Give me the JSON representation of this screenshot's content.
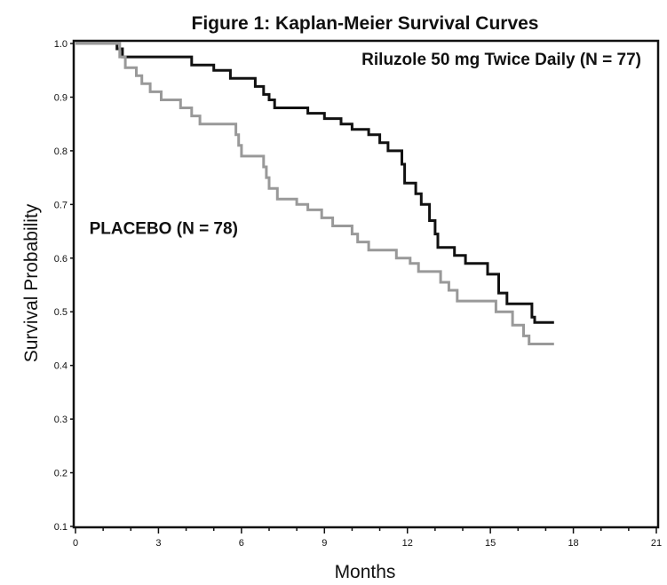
{
  "chart_data": {
    "type": "line",
    "step": true,
    "title": "Figure 1:  Kaplan-Meier Survival Curves",
    "xlabel": "Months",
    "ylabel": "Survival Probability",
    "xlim": [
      0,
      21
    ],
    "ylim": [
      0.1,
      1.0
    ],
    "x_ticks": [
      0,
      3,
      6,
      9,
      12,
      15,
      18,
      21
    ],
    "x_tick_labels": [
      "0",
      "3",
      "6",
      "9",
      "12",
      "15",
      "18",
      "21"
    ],
    "y_ticks": [
      0.1,
      0.2,
      0.3,
      0.4,
      0.5,
      0.6,
      0.7,
      0.8,
      0.9,
      1.0
    ],
    "y_tick_labels": [
      "0.1",
      "0.2",
      "0.3",
      "0.4",
      "0.5",
      "0.6",
      "0.7",
      "0.8",
      "0.9",
      "1.0"
    ],
    "grid": false,
    "series": [
      {
        "name": "Riluzole 50 mg Twice Daily (N = 77)",
        "color": "#111111",
        "points": [
          [
            0,
            1.0
          ],
          [
            1.5,
            0.99
          ],
          [
            1.7,
            0.975
          ],
          [
            4.2,
            0.96
          ],
          [
            5.0,
            0.95
          ],
          [
            5.6,
            0.935
          ],
          [
            6.5,
            0.92
          ],
          [
            6.8,
            0.905
          ],
          [
            7.0,
            0.895
          ],
          [
            7.2,
            0.88
          ],
          [
            8.4,
            0.87
          ],
          [
            9.0,
            0.86
          ],
          [
            9.6,
            0.85
          ],
          [
            10.0,
            0.84
          ],
          [
            10.6,
            0.83
          ],
          [
            11.0,
            0.815
          ],
          [
            11.3,
            0.8
          ],
          [
            11.8,
            0.775
          ],
          [
            11.9,
            0.74
          ],
          [
            12.3,
            0.72
          ],
          [
            12.5,
            0.7
          ],
          [
            12.8,
            0.67
          ],
          [
            13.0,
            0.645
          ],
          [
            13.1,
            0.62
          ],
          [
            13.7,
            0.605
          ],
          [
            14.1,
            0.59
          ],
          [
            14.9,
            0.57
          ],
          [
            15.3,
            0.535
          ],
          [
            15.6,
            0.515
          ],
          [
            16.5,
            0.49
          ],
          [
            16.6,
            0.48
          ],
          [
            17.3,
            0.48
          ]
        ]
      },
      {
        "name": "PLACEBO (N = 78)",
        "color": "#999999",
        "points": [
          [
            0,
            1.0
          ],
          [
            1.6,
            0.975
          ],
          [
            1.8,
            0.955
          ],
          [
            2.2,
            0.94
          ],
          [
            2.4,
            0.925
          ],
          [
            2.7,
            0.91
          ],
          [
            3.1,
            0.895
          ],
          [
            3.8,
            0.88
          ],
          [
            4.2,
            0.865
          ],
          [
            4.5,
            0.85
          ],
          [
            5.8,
            0.83
          ],
          [
            5.9,
            0.81
          ],
          [
            6.0,
            0.79
          ],
          [
            6.8,
            0.77
          ],
          [
            6.9,
            0.75
          ],
          [
            7.0,
            0.73
          ],
          [
            7.3,
            0.71
          ],
          [
            8.0,
            0.7
          ],
          [
            8.4,
            0.69
          ],
          [
            8.9,
            0.675
          ],
          [
            9.3,
            0.66
          ],
          [
            10.0,
            0.645
          ],
          [
            10.2,
            0.63
          ],
          [
            10.6,
            0.615
          ],
          [
            11.6,
            0.6
          ],
          [
            12.1,
            0.59
          ],
          [
            12.4,
            0.575
          ],
          [
            13.2,
            0.555
          ],
          [
            13.5,
            0.54
          ],
          [
            13.8,
            0.52
          ],
          [
            15.2,
            0.5
          ],
          [
            15.8,
            0.475
          ],
          [
            16.2,
            0.455
          ],
          [
            16.4,
            0.44
          ],
          [
            17.3,
            0.44
          ]
        ]
      }
    ],
    "annotations": [
      {
        "text": "Riluzole 50 mg Twice Daily (N = 77)",
        "x": 15.4,
        "y": 0.96,
        "anchor": "middle"
      },
      {
        "text": "PLACEBO (N = 78)",
        "x": 0.5,
        "y": 0.645,
        "anchor": "start"
      }
    ]
  }
}
